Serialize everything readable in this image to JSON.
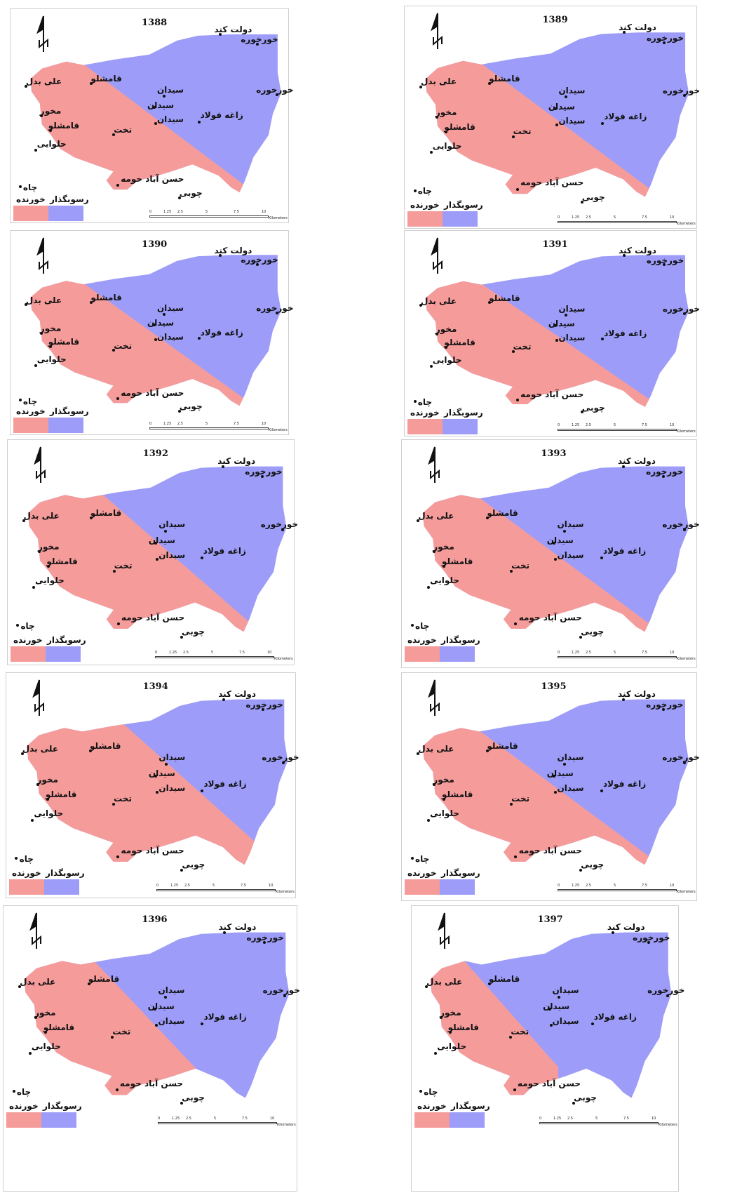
{
  "colors": {
    "erosion": "#f59c9b",
    "sediment": "#9d9df9"
  },
  "legend": {
    "erosion_label": "خورنده",
    "sediment_label": "رسوبگذار"
  },
  "scale": {
    "ticks": [
      "0",
      "1.25",
      "2.5",
      "5",
      "7.5",
      "10"
    ],
    "unit": "Kilometers"
  },
  "north_icon": "north-arrow-icon",
  "places": {
    "dowlatkand": "دولت كند",
    "khorkhore": "خورخوره",
    "qameshlu": "قامشلو",
    "alibadal": "علی بدل",
    "seydan": "سیدان",
    "makhvor": "مخور",
    "zaghefulad": "زاغه فولاد",
    "takht": "تخت",
    "halvaee": "حلوایی",
    "hasanabad": "حسن آباد حومه",
    "choobi": "چوبی",
    "chah": "چاه"
  },
  "maps": [
    {
      "year": "1388"
    },
    {
      "year": "1389"
    },
    {
      "year": "1390"
    },
    {
      "year": "1391"
    },
    {
      "year": "1392"
    },
    {
      "year": "1393"
    },
    {
      "year": "1394"
    },
    {
      "year": "1395"
    },
    {
      "year": "1396"
    },
    {
      "year": "1397"
    }
  ]
}
